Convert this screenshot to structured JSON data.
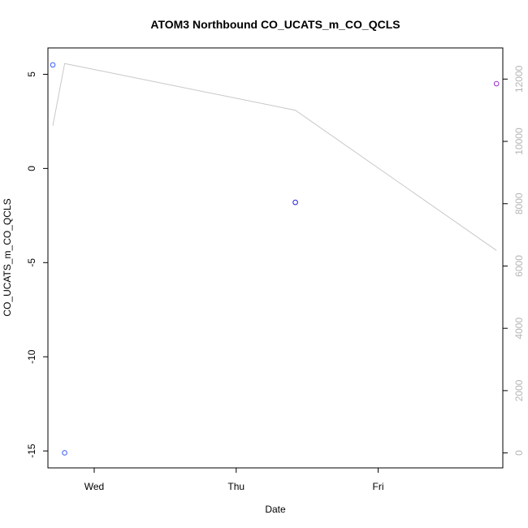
{
  "chart_data": {
    "type": "scatter",
    "title": "ATOM3 Northbound CO_UCATS_m_CO_QCLS",
    "xlabel": "Date",
    "ylabel": "CO_UCATS_m_CO_QCLS",
    "x_ticks": [
      "Wed",
      "Thu",
      "Fri"
    ],
    "y_ticks": [
      "5",
      "0",
      "-5",
      "-10",
      "-15"
    ],
    "y2_ticks": [
      "0",
      "2000",
      "4000",
      "6000",
      "8000",
      "10000",
      "12000"
    ],
    "points": [
      {
        "x": "Tue 17:00",
        "y": 5.5,
        "color": "#3b5bff"
      },
      {
        "x": "Tue 19:00",
        "y": -15.1,
        "color": "#3b5bff"
      },
      {
        "x": "Thu 10:00",
        "y": -1.8,
        "color": "#2222dd"
      },
      {
        "x": "Fri 20:00",
        "y": 4.5,
        "color": "#9933cc"
      }
    ],
    "secondary_line": {
      "color": "#c8c8c8",
      "points": [
        {
          "x": "Tue 17:00",
          "y": 10500
        },
        {
          "x": "Tue 19:00",
          "y": 12500
        },
        {
          "x": "Thu 10:00",
          "y": 11000
        },
        {
          "x": "Fri 20:00",
          "y": 6500
        }
      ]
    }
  }
}
